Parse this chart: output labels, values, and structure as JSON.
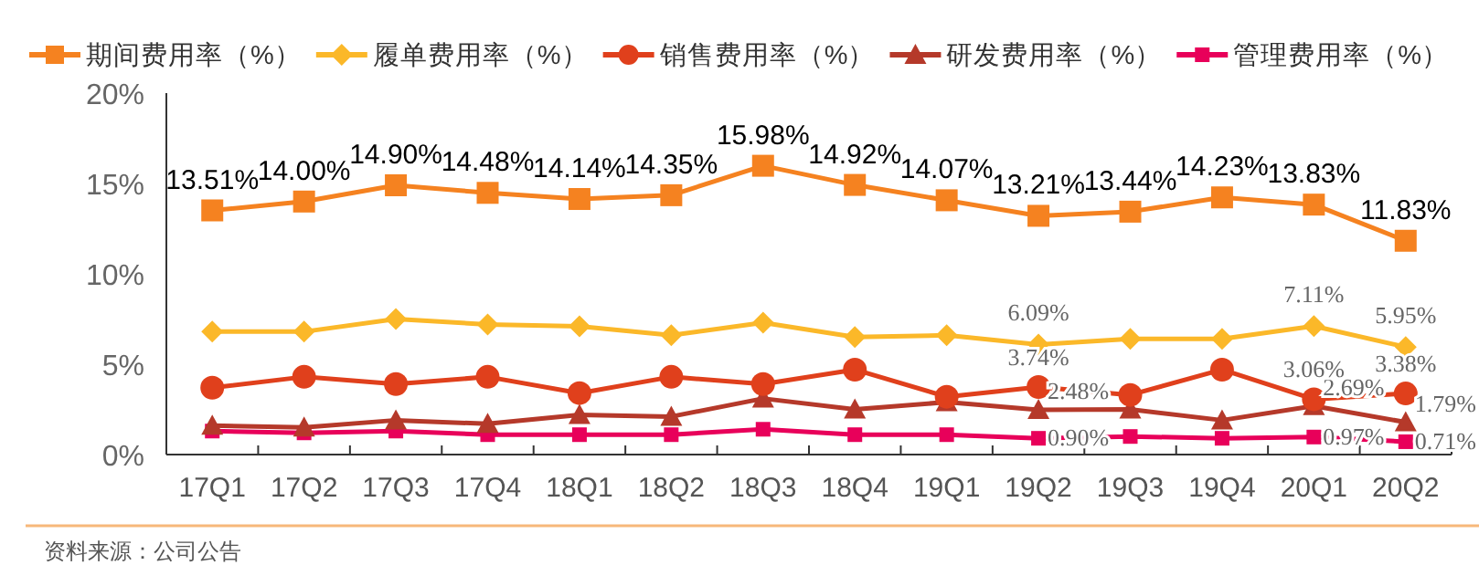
{
  "chart_data": {
    "type": "line",
    "categories": [
      "17Q1",
      "17Q2",
      "17Q3",
      "17Q4",
      "18Q1",
      "18Q2",
      "18Q3",
      "18Q4",
      "19Q1",
      "19Q2",
      "19Q3",
      "19Q4",
      "20Q1",
      "20Q2"
    ],
    "series": [
      {
        "name": "期间费用率（%）",
        "color": "#f58220",
        "marker": "square",
        "values": [
          13.51,
          14.0,
          14.9,
          14.48,
          14.14,
          14.35,
          15.98,
          14.92,
          14.07,
          13.21,
          13.44,
          14.23,
          13.83,
          11.83
        ],
        "value_labels": [
          "13.51%",
          "14.00%",
          "14.90%",
          "14.48%",
          "14.14%",
          "14.35%",
          "15.98%",
          "14.92%",
          "14.07%",
          "13.21%",
          "13.44%",
          "14.23%",
          "13.83%",
          "11.83%"
        ]
      },
      {
        "name": "履单费用率（%）",
        "color": "#fbb829",
        "marker": "diamond",
        "values": [
          6.8,
          6.8,
          7.5,
          7.2,
          7.1,
          6.6,
          7.3,
          6.5,
          6.6,
          6.09,
          6.4,
          6.4,
          7.11,
          5.95
        ],
        "value_labels": [
          null,
          null,
          null,
          null,
          null,
          null,
          null,
          null,
          null,
          "6.09%",
          null,
          null,
          "7.11%",
          "5.95%"
        ]
      },
      {
        "name": "销售费用率（%）",
        "color": "#e0401c",
        "marker": "circle",
        "values": [
          3.7,
          4.3,
          3.9,
          4.3,
          3.4,
          4.3,
          3.9,
          4.7,
          3.2,
          3.74,
          3.3,
          4.7,
          3.06,
          3.38
        ],
        "value_labels": [
          null,
          null,
          null,
          null,
          null,
          null,
          null,
          null,
          null,
          "3.74%",
          null,
          null,
          "3.06%",
          "3.38%"
        ]
      },
      {
        "name": "研发费用率（%）",
        "color": "#b5392a",
        "marker": "triangle",
        "values": [
          1.6,
          1.5,
          1.9,
          1.7,
          2.2,
          2.1,
          3.1,
          2.5,
          2.9,
          2.48,
          2.5,
          1.9,
          2.69,
          1.79
        ],
        "value_labels": [
          null,
          null,
          null,
          null,
          null,
          null,
          null,
          null,
          null,
          "2.48%",
          null,
          null,
          "2.69%",
          "1.79%"
        ]
      },
      {
        "name": "管理费用率（%）",
        "color": "#e8005a",
        "marker": "square",
        "values": [
          1.3,
          1.2,
          1.3,
          1.1,
          1.1,
          1.1,
          1.4,
          1.1,
          1.1,
          0.9,
          1.0,
          0.9,
          0.97,
          0.71
        ],
        "value_labels": [
          null,
          null,
          null,
          null,
          null,
          null,
          null,
          null,
          null,
          "0.90%",
          null,
          null,
          "0.97%",
          "0.71%"
        ]
      }
    ],
    "ylim": [
      0,
      20
    ],
    "yticks": [
      {
        "value": 0,
        "label": "0%"
      },
      {
        "value": 5,
        "label": "5%"
      },
      {
        "value": 10,
        "label": "10%"
      },
      {
        "value": 15,
        "label": "15%"
      },
      {
        "value": 20,
        "label": "20%"
      }
    ],
    "legend": "top",
    "annotations": [
      "资料来源：公司公告"
    ]
  }
}
